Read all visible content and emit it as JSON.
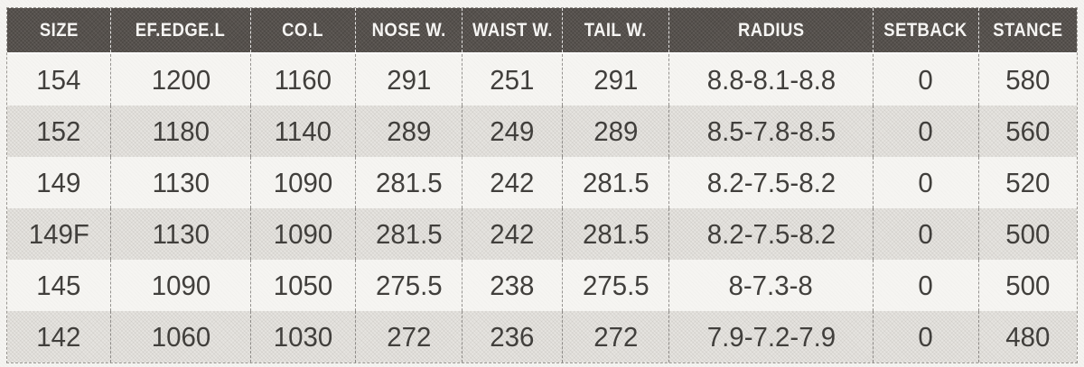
{
  "table": {
    "columns": [
      {
        "label": "SIZE"
      },
      {
        "label": "EF.EDGE.L"
      },
      {
        "label": "CO.L"
      },
      {
        "label": "NOSE W."
      },
      {
        "label": "WAIST W."
      },
      {
        "label": "TAIL W."
      },
      {
        "label": "RADIUS"
      },
      {
        "label": "SETBACK"
      },
      {
        "label": "STANCE"
      }
    ],
    "rows": [
      {
        "cells": [
          "154",
          "1200",
          "1160",
          "291",
          "251",
          "291",
          "8.8-8.1-8.8",
          "0",
          "580"
        ]
      },
      {
        "cells": [
          "152",
          "1180",
          "1140",
          "289",
          "249",
          "289",
          "8.5-7.8-8.5",
          "0",
          "560"
        ]
      },
      {
        "cells": [
          "149",
          "1130",
          "1090",
          "281.5",
          "242",
          "281.5",
          "8.2-7.5-8.2",
          "0",
          "520"
        ]
      },
      {
        "cells": [
          "149F",
          "1130",
          "1090",
          "281.5",
          "242",
          "281.5",
          "8.2-7.5-8.2",
          "0",
          "500"
        ]
      },
      {
        "cells": [
          "145",
          "1090",
          "1050",
          "275.5",
          "238",
          "275.5",
          "8-7.3-8",
          "0",
          "500"
        ]
      },
      {
        "cells": [
          "142",
          "1060",
          "1030",
          "272",
          "236",
          "272",
          "7.9-7.2-7.9",
          "0",
          "480"
        ]
      }
    ]
  },
  "colors": {
    "header_bg": "#56514d",
    "header_text": "#f5f4f2",
    "row_odd": "#f6f5f2",
    "row_even": "#e6e4e0",
    "body_text": "#413f3c",
    "separator_dash": "#55524e"
  },
  "chart_data": {
    "type": "table",
    "title": "",
    "columns": [
      "SIZE",
      "EF.EDGE.L",
      "CO.L",
      "NOSE W.",
      "WAIST W.",
      "TAIL W.",
      "RADIUS",
      "SETBACK",
      "STANCE"
    ],
    "rows": [
      [
        "154",
        1200,
        1160,
        291,
        251,
        291,
        "8.8-8.1-8.8",
        0,
        580
      ],
      [
        "152",
        1180,
        1140,
        289,
        249,
        289,
        "8.5-7.8-8.5",
        0,
        560
      ],
      [
        "149",
        1130,
        1090,
        281.5,
        242,
        281.5,
        "8.2-7.5-8.2",
        0,
        520
      ],
      [
        "149F",
        1130,
        1090,
        281.5,
        242,
        281.5,
        "8.2-7.5-8.2",
        0,
        500
      ],
      [
        "145",
        1090,
        1050,
        275.5,
        238,
        275.5,
        "8-7.3-8",
        0,
        500
      ],
      [
        "142",
        1060,
        1030,
        272,
        236,
        272,
        "7.9-7.2-7.9",
        0,
        480
      ]
    ]
  }
}
